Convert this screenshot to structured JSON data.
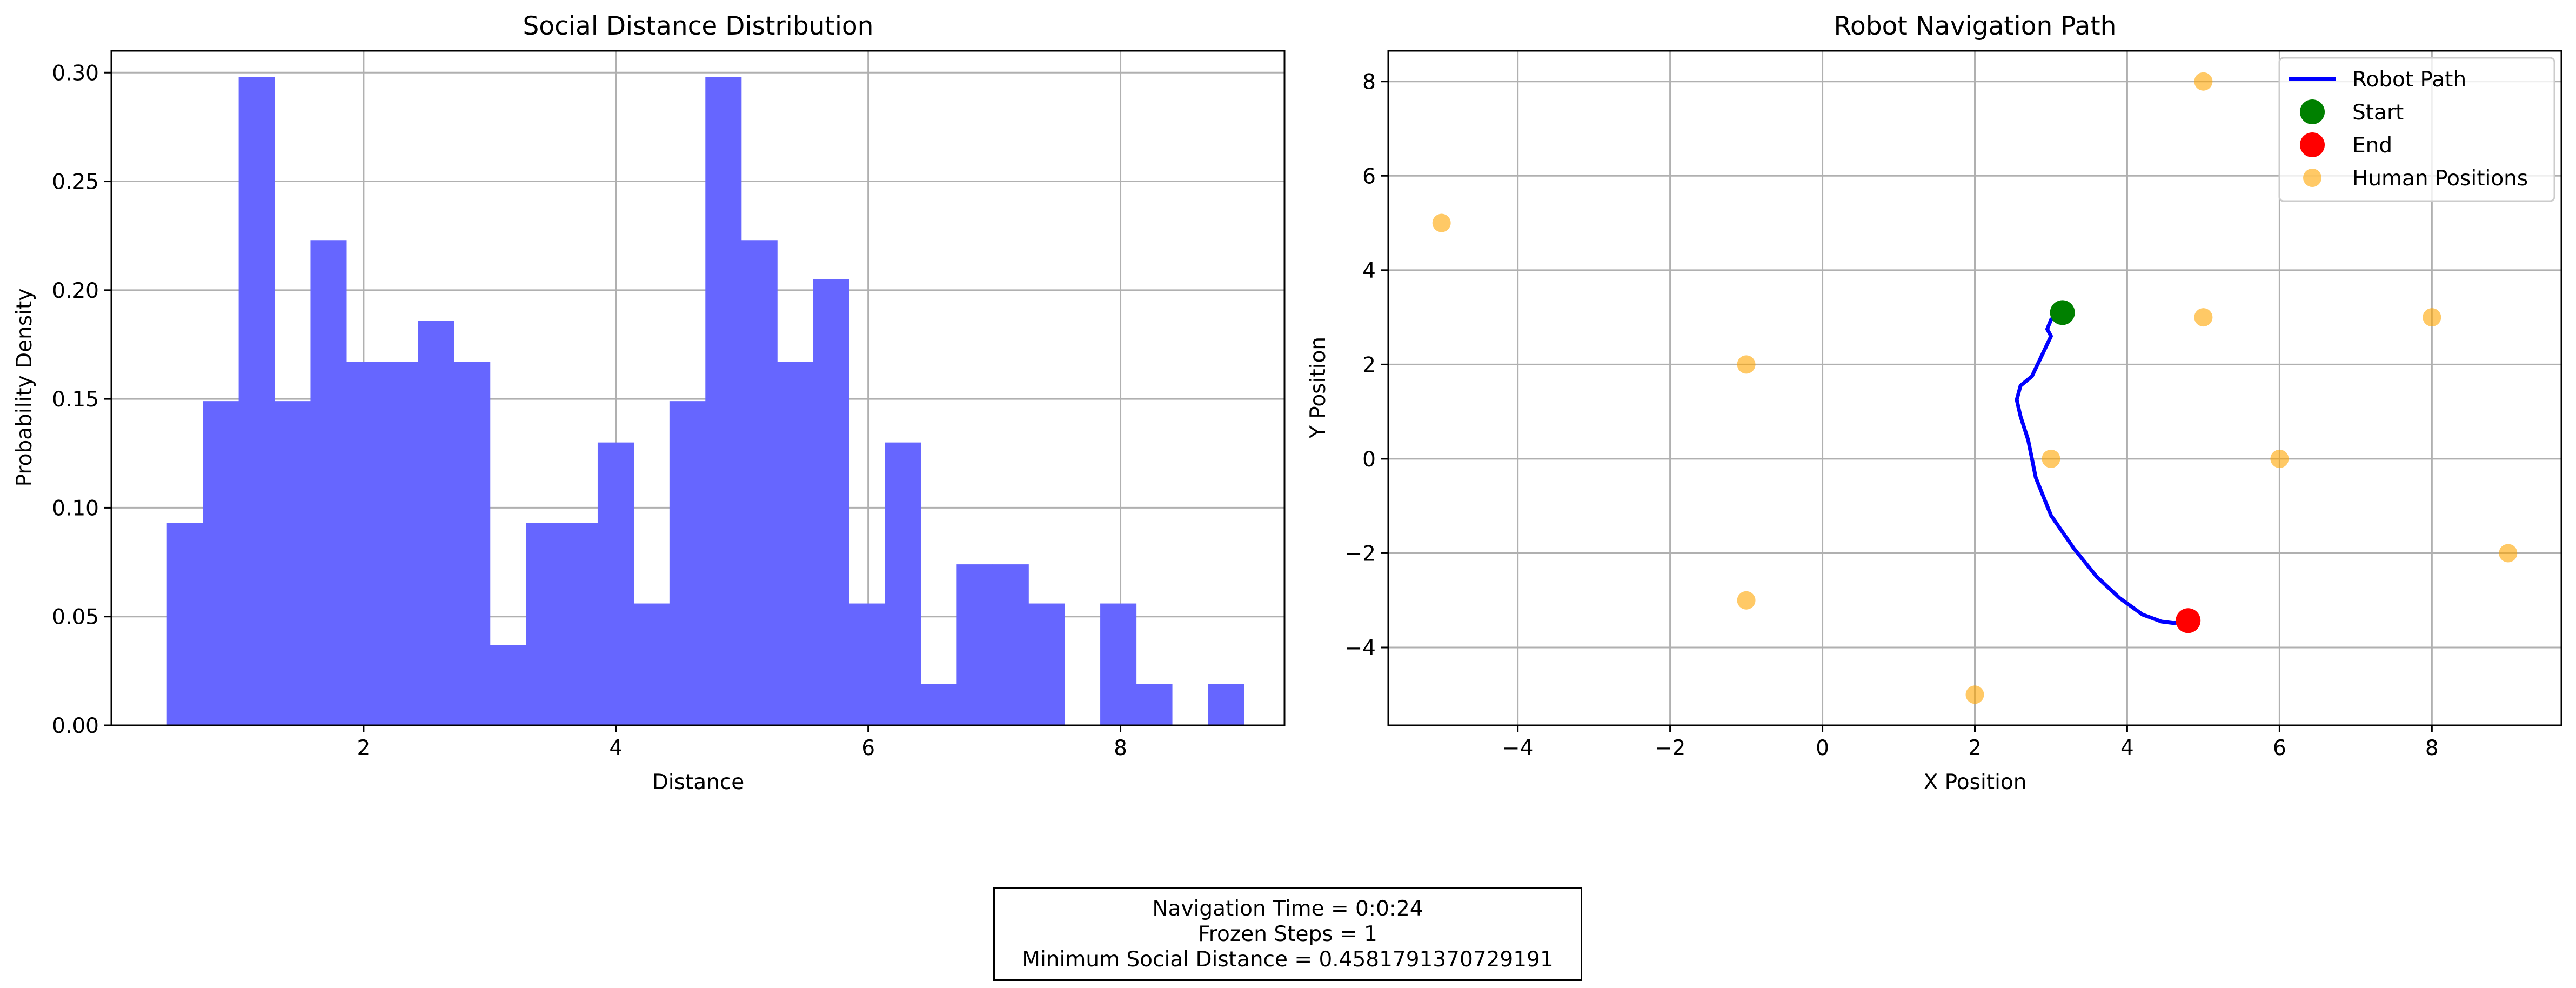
{
  "chart_data": [
    {
      "type": "bar",
      "title": "Social Distance Distribution",
      "xlabel": "Distance",
      "ylabel": "Probability Density",
      "xlim": [
        0.0,
        9.3
      ],
      "ylim": [
        0.0,
        0.31
      ],
      "xticks": [
        2,
        4,
        6,
        8
      ],
      "yticks": [
        0.0,
        0.05,
        0.1,
        0.15,
        0.2,
        0.25,
        0.3
      ],
      "ytick_labels": [
        "0.00",
        "0.05",
        "0.10",
        "0.15",
        "0.20",
        "0.25",
        "0.30"
      ],
      "grid": true,
      "bar_color": "#6666ff",
      "bin_start": 0.44,
      "bin_width": 0.2846,
      "values": [
        0.093,
        0.149,
        0.298,
        0.149,
        0.223,
        0.167,
        0.167,
        0.186,
        0.167,
        0.037,
        0.093,
        0.093,
        0.13,
        0.056,
        0.149,
        0.298,
        0.223,
        0.167,
        0.205,
        0.056,
        0.13,
        0.019,
        0.074,
        0.074,
        0.056,
        0.0,
        0.056,
        0.019,
        0.0,
        0.019
      ]
    },
    {
      "type": "scatter",
      "title": "Robot Navigation Path",
      "xlabel": "X Position",
      "ylabel": "Y Position",
      "xlim": [
        -5.7,
        9.7
      ],
      "ylim": [
        -5.65,
        8.65
      ],
      "xticks": [
        -4,
        -2,
        0,
        2,
        4,
        6,
        8
      ],
      "xtick_labels": [
        "−4",
        "−2",
        "0",
        "2",
        "4",
        "6",
        "8"
      ],
      "yticks": [
        -4,
        -2,
        0,
        2,
        4,
        6,
        8
      ],
      "ytick_labels": [
        "−4",
        "−2",
        "0",
        "2",
        "4",
        "6",
        "8"
      ],
      "grid": true,
      "legend_position": "top-right",
      "series": [
        {
          "name": "Robot Path",
          "kind": "line",
          "color": "#0000ff",
          "x": [
            3.1,
            3.0,
            2.95,
            3.0,
            2.75,
            2.6,
            2.55,
            2.6,
            2.7,
            2.8,
            3.0,
            3.3,
            3.6,
            3.9,
            4.2,
            4.45,
            4.6,
            4.75,
            4.82
          ],
          "y": [
            3.1,
            2.95,
            2.75,
            2.6,
            1.75,
            1.55,
            1.25,
            0.9,
            0.4,
            -0.4,
            -1.2,
            -1.9,
            -2.5,
            -2.95,
            -3.3,
            -3.45,
            -3.48,
            -3.47,
            -3.43
          ]
        },
        {
          "name": "Start",
          "kind": "marker",
          "color": "#008000",
          "x": [
            3.15
          ],
          "y": [
            3.1
          ]
        },
        {
          "name": "End",
          "kind": "marker",
          "color": "#ff0000",
          "x": [
            4.8
          ],
          "y": [
            -3.43
          ]
        },
        {
          "name": "Human Positions",
          "kind": "scatter",
          "color": "#ffa500",
          "x": [
            -5,
            -1,
            -1,
            2,
            3,
            5,
            5,
            6,
            8,
            9
          ],
          "y": [
            5,
            2,
            -3,
            -5,
            0,
            8,
            3,
            0,
            3,
            -2
          ]
        }
      ]
    }
  ],
  "summary": {
    "line1": "Navigation Time = 0:0:24",
    "line2": "Frozen Steps = 1",
    "line3": "Minimum Social Distance = 0.4581791370729191"
  }
}
